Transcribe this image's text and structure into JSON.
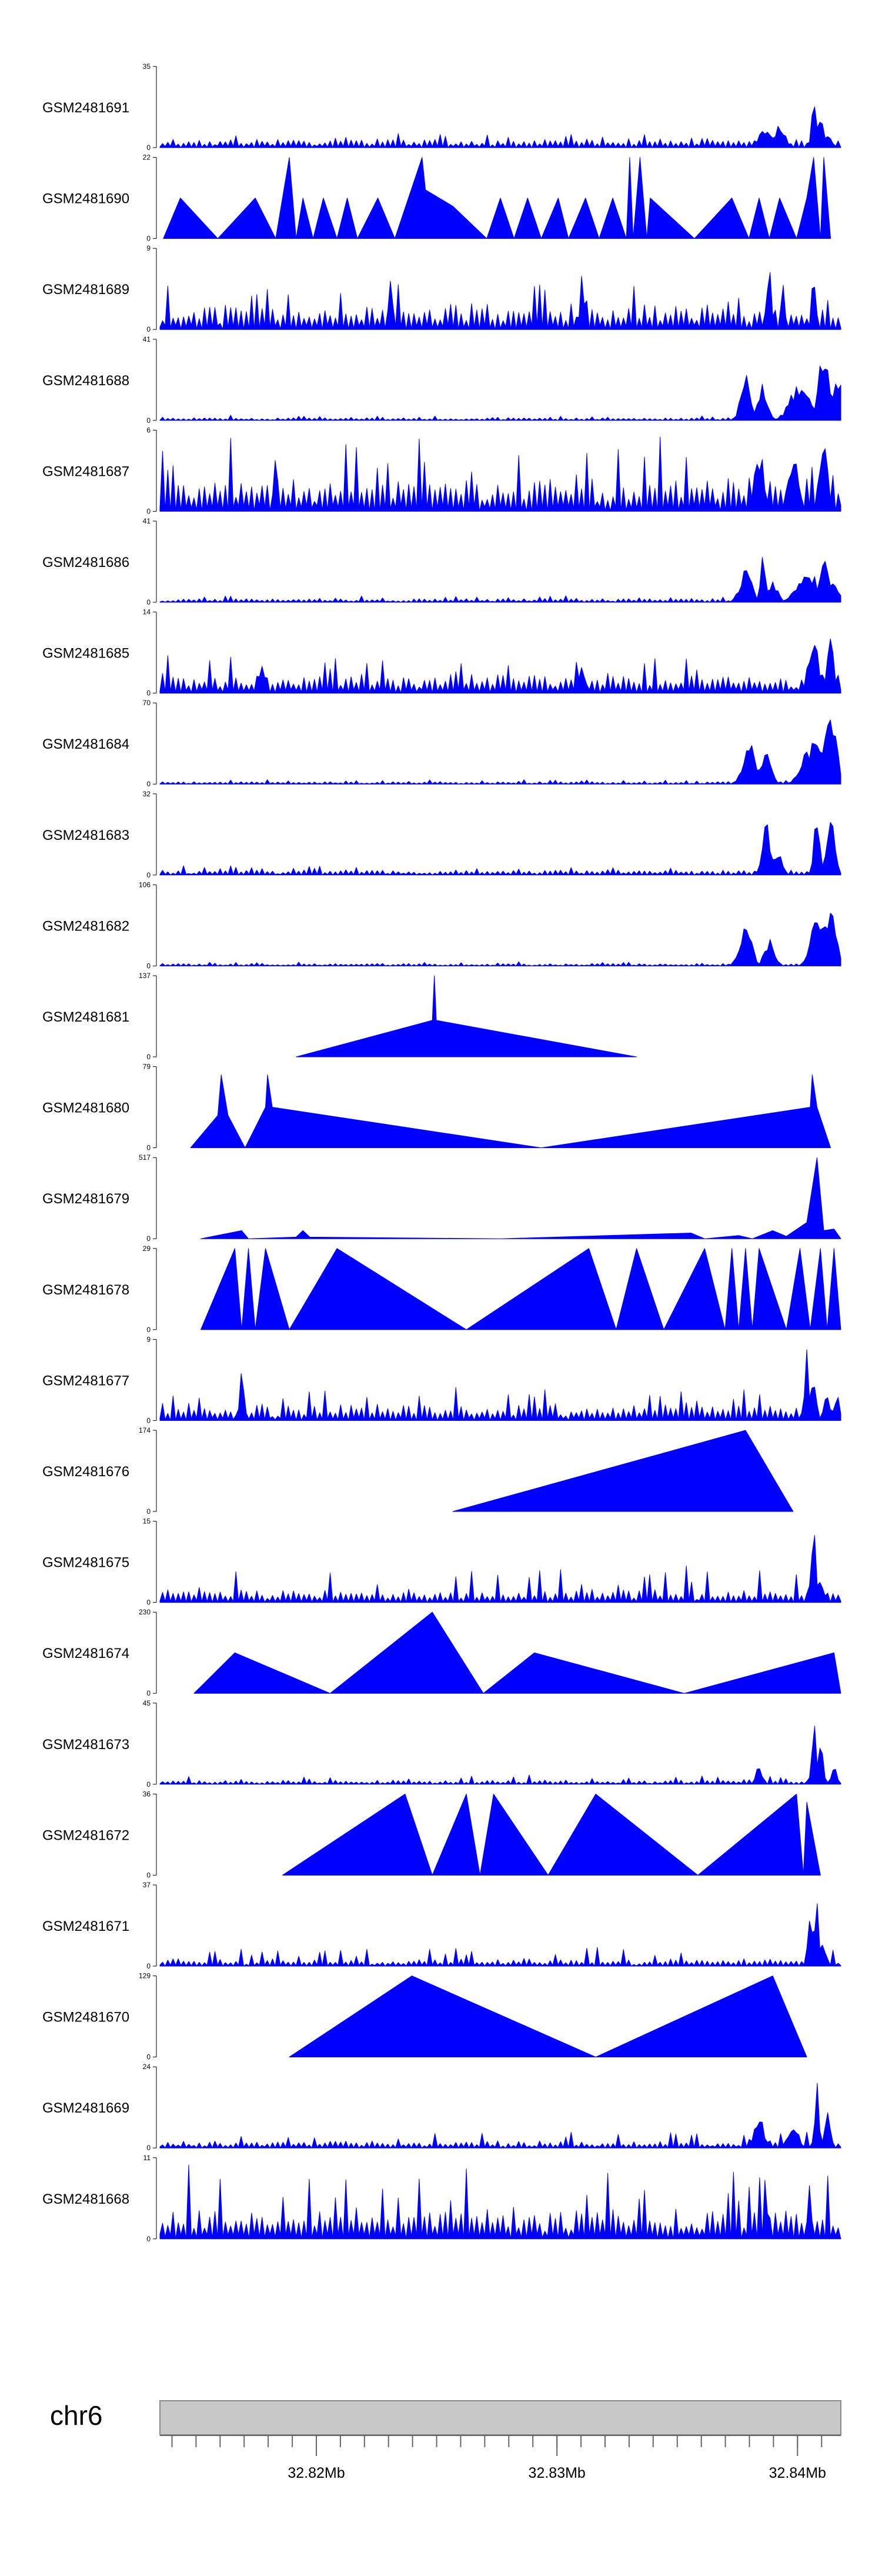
{
  "chart_data": {
    "type": "area",
    "title": "",
    "xlabel": "",
    "ylabel": "",
    "chromosome": "chr6",
    "xlim": [
      32.8135,
      32.8418
    ],
    "x_ticks": [
      {
        "value": 32.82,
        "label": "32.82Mb"
      },
      {
        "value": 32.83,
        "label": "32.83Mb"
      },
      {
        "value": 32.84,
        "label": "32.84Mb"
      }
    ],
    "tracks": [
      {
        "name": "GSM2481691",
        "ymax": 35,
        "ymin": 0,
        "kind": "dense",
        "seed": 11,
        "base": 0.07,
        "noise": 0.06,
        "peaks": [
          [
            0.888,
            0.25,
            0.012
          ],
          [
            0.91,
            0.35,
            0.01
          ],
          [
            0.96,
            1.0,
            0.004
          ],
          [
            0.97,
            0.45,
            0.006
          ],
          [
            0.98,
            0.15,
            0.01
          ]
        ]
      },
      {
        "name": "GSM2481690",
        "ymax": 22,
        "ymin": 0,
        "kind": "sparse",
        "seed": 12,
        "points": [
          [
            0.005,
            0.0
          ],
          [
            0.03,
            0.5
          ],
          [
            0.085,
            0.0
          ],
          [
            0.14,
            0.5
          ],
          [
            0.17,
            0.0
          ],
          [
            0.19,
            1.0
          ],
          [
            0.2,
            0.0
          ],
          [
            0.21,
            0.5
          ],
          [
            0.225,
            0.0
          ],
          [
            0.24,
            0.5
          ],
          [
            0.26,
            0.0
          ],
          [
            0.275,
            0.5
          ],
          [
            0.29,
            0.0
          ],
          [
            0.32,
            0.5
          ],
          [
            0.345,
            0.0
          ],
          [
            0.385,
            1.0
          ],
          [
            0.39,
            0.6
          ],
          [
            0.43,
            0.4
          ],
          [
            0.48,
            0.0
          ],
          [
            0.5,
            0.5
          ],
          [
            0.52,
            0.0
          ],
          [
            0.54,
            0.5
          ],
          [
            0.56,
            0.0
          ],
          [
            0.585,
            0.5
          ],
          [
            0.6,
            0.0
          ],
          [
            0.625,
            0.5
          ],
          [
            0.645,
            0.0
          ],
          [
            0.665,
            0.5
          ],
          [
            0.685,
            0.0
          ],
          [
            0.69,
            1.0
          ],
          [
            0.695,
            0.0
          ],
          [
            0.705,
            1.0
          ],
          [
            0.715,
            0.0
          ],
          [
            0.72,
            0.5
          ],
          [
            0.785,
            0.0
          ],
          [
            0.84,
            0.5
          ],
          [
            0.865,
            0.0
          ],
          [
            0.88,
            0.5
          ],
          [
            0.895,
            0.0
          ],
          [
            0.91,
            0.5
          ],
          [
            0.935,
            0.0
          ],
          [
            0.95,
            0.5
          ],
          [
            0.96,
            1.0
          ],
          [
            0.97,
            0.0
          ],
          [
            0.975,
            1.0
          ],
          [
            0.985,
            0.0
          ]
        ]
      },
      {
        "name": "GSM2481689",
        "ymax": 9,
        "ymin": 0,
        "kind": "dense",
        "seed": 13,
        "base": 0.18,
        "noise": 0.3,
        "peaks": [
          [
            0.34,
            0.7,
            0.004
          ],
          [
            0.62,
            0.8,
            0.004
          ],
          [
            0.895,
            0.85,
            0.004
          ],
          [
            0.915,
            1.0,
            0.003
          ],
          [
            0.96,
            0.9,
            0.004
          ]
        ]
      },
      {
        "name": "GSM2481688",
        "ymax": 41,
        "ymin": 0,
        "kind": "dense",
        "seed": 14,
        "base": 0.02,
        "noise": 0.03,
        "peaks": [
          [
            0.86,
            0.6,
            0.01
          ],
          [
            0.885,
            0.45,
            0.01
          ],
          [
            0.94,
            0.5,
            0.02
          ],
          [
            0.975,
            0.95,
            0.01
          ],
          [
            0.995,
            0.6,
            0.01
          ]
        ]
      },
      {
        "name": "GSM2481687",
        "ymax": 6,
        "ymin": 0,
        "kind": "dense",
        "seed": 15,
        "base": 0.25,
        "noise": 0.45,
        "peaks": [
          [
            0.17,
            0.8,
            0.004
          ],
          [
            0.88,
            0.9,
            0.01
          ],
          [
            0.93,
            0.8,
            0.01
          ],
          [
            0.975,
            0.95,
            0.008
          ]
        ]
      },
      {
        "name": "GSM2481686",
        "ymax": 41,
        "ymin": 0,
        "kind": "dense",
        "seed": 16,
        "base": 0.03,
        "noise": 0.03,
        "peaks": [
          [
            0.86,
            0.45,
            0.012
          ],
          [
            0.885,
            0.85,
            0.004
          ],
          [
            0.9,
            0.3,
            0.01
          ],
          [
            0.95,
            0.45,
            0.02
          ],
          [
            0.975,
            0.55,
            0.01
          ],
          [
            0.99,
            0.3,
            0.01
          ]
        ]
      },
      {
        "name": "GSM2481685",
        "ymax": 14,
        "ymin": 0,
        "kind": "dense",
        "seed": 17,
        "base": 0.15,
        "noise": 0.2,
        "peaks": [
          [
            0.15,
            0.45,
            0.006
          ],
          [
            0.62,
            0.45,
            0.006
          ],
          [
            0.96,
            0.7,
            0.01
          ],
          [
            0.985,
            1.0,
            0.006
          ]
        ]
      },
      {
        "name": "GSM2481684",
        "ymax": 70,
        "ymin": 0,
        "kind": "dense",
        "seed": 18,
        "base": 0.02,
        "noise": 0.02,
        "peaks": [
          [
            0.865,
            0.55,
            0.012
          ],
          [
            0.89,
            0.45,
            0.01
          ],
          [
            0.96,
            0.6,
            0.02
          ],
          [
            0.985,
            0.95,
            0.012
          ]
        ]
      },
      {
        "name": "GSM2481683",
        "ymax": 32,
        "ymin": 0,
        "kind": "dense",
        "seed": 19,
        "base": 0.04,
        "noise": 0.05,
        "peaks": [
          [
            0.89,
            0.7,
            0.008
          ],
          [
            0.905,
            0.35,
            0.01
          ],
          [
            0.965,
            0.9,
            0.006
          ],
          [
            0.985,
            1.0,
            0.008
          ]
        ]
      },
      {
        "name": "GSM2481682",
        "ymax": 106,
        "ymin": 0,
        "kind": "dense",
        "seed": 20,
        "base": 0.02,
        "noise": 0.02,
        "peaks": [
          [
            0.86,
            0.6,
            0.012
          ],
          [
            0.895,
            0.35,
            0.01
          ],
          [
            0.965,
            0.75,
            0.012
          ],
          [
            0.985,
            0.95,
            0.01
          ]
        ]
      },
      {
        "name": "GSM2481681",
        "ymax": 137,
        "ymin": 0,
        "kind": "sparse",
        "seed": 21,
        "points": [
          [
            0.2,
            0.0
          ],
          [
            0.4,
            0.45
          ],
          [
            0.403,
            1.0
          ],
          [
            0.406,
            0.45
          ],
          [
            0.7,
            0.0
          ]
        ]
      },
      {
        "name": "GSM2481680",
        "ymax": 79,
        "ymin": 0,
        "kind": "sparse",
        "seed": 22,
        "points": [
          [
            0.045,
            0.0
          ],
          [
            0.085,
            0.4
          ],
          [
            0.09,
            0.9
          ],
          [
            0.1,
            0.4
          ],
          [
            0.125,
            0.0
          ],
          [
            0.155,
            0.5
          ],
          [
            0.158,
            0.9
          ],
          [
            0.165,
            0.5
          ],
          [
            0.56,
            0.0
          ],
          [
            0.955,
            0.5
          ],
          [
            0.958,
            0.9
          ],
          [
            0.965,
            0.5
          ],
          [
            0.985,
            0.0
          ]
        ]
      },
      {
        "name": "GSM2481679",
        "ymax": 517,
        "ymin": 0,
        "kind": "sparse",
        "seed": 23,
        "points": [
          [
            0.06,
            0.0
          ],
          [
            0.12,
            0.1
          ],
          [
            0.13,
            0.0
          ],
          [
            0.2,
            0.02
          ],
          [
            0.21,
            0.1
          ],
          [
            0.22,
            0.02
          ],
          [
            0.5,
            0.0
          ],
          [
            0.78,
            0.07
          ],
          [
            0.8,
            0.0
          ],
          [
            0.85,
            0.04
          ],
          [
            0.87,
            0.0
          ],
          [
            0.9,
            0.1
          ],
          [
            0.92,
            0.03
          ],
          [
            0.95,
            0.2
          ],
          [
            0.965,
            1.0
          ],
          [
            0.975,
            0.1
          ],
          [
            0.99,
            0.12
          ],
          [
            1.0,
            0.0
          ]
        ]
      },
      {
        "name": "GSM2481678",
        "ymax": 29,
        "ymin": 0,
        "kind": "sparse",
        "seed": 24,
        "points": [
          [
            0.06,
            0.0
          ],
          [
            0.11,
            1.0
          ],
          [
            0.12,
            0.0
          ],
          [
            0.13,
            1.0
          ],
          [
            0.14,
            0.0
          ],
          [
            0.155,
            1.0
          ],
          [
            0.19,
            0.0
          ],
          [
            0.26,
            1.0
          ],
          [
            0.45,
            0.0
          ],
          [
            0.63,
            1.0
          ],
          [
            0.67,
            0.0
          ],
          [
            0.7,
            1.0
          ],
          [
            0.74,
            0.0
          ],
          [
            0.8,
            1.0
          ],
          [
            0.83,
            0.0
          ],
          [
            0.84,
            1.0
          ],
          [
            0.85,
            0.0
          ],
          [
            0.86,
            1.0
          ],
          [
            0.87,
            0.0
          ],
          [
            0.88,
            1.0
          ],
          [
            0.92,
            0.0
          ],
          [
            0.94,
            1.0
          ],
          [
            0.955,
            0.0
          ],
          [
            0.97,
            1.0
          ],
          [
            0.98,
            0.0
          ],
          [
            0.99,
            1.0
          ],
          [
            1.0,
            0.0
          ]
        ]
      },
      {
        "name": "GSM2481677",
        "ymax": 9,
        "ymin": 0,
        "kind": "dense",
        "seed": 25,
        "base": 0.12,
        "noise": 0.18,
        "peaks": [
          [
            0.12,
            0.7,
            0.004
          ],
          [
            0.95,
            0.9,
            0.004
          ],
          [
            0.96,
            0.6,
            0.006
          ],
          [
            0.98,
            0.4,
            0.006
          ],
          [
            0.995,
            0.5,
            0.004
          ]
        ]
      },
      {
        "name": "GSM2481676",
        "ymax": 174,
        "ymin": 0,
        "kind": "sparse",
        "seed": 26,
        "points": [
          [
            0.43,
            0.0
          ],
          [
            0.86,
            1.0
          ],
          [
            0.93,
            0.0
          ]
        ]
      },
      {
        "name": "GSM2481675",
        "ymax": 15,
        "ymin": 0,
        "kind": "dense",
        "seed": 27,
        "base": 0.08,
        "noise": 0.25,
        "peaks": [
          [
            0.96,
            0.95,
            0.005
          ],
          [
            0.97,
            0.4,
            0.006
          ]
        ]
      },
      {
        "name": "GSM2481674",
        "ymax": 230,
        "ymin": 0,
        "kind": "sparse",
        "seed": 28,
        "points": [
          [
            0.05,
            0.0
          ],
          [
            0.11,
            0.5
          ],
          [
            0.25,
            0.0
          ],
          [
            0.4,
            1.0
          ],
          [
            0.475,
            0.0
          ],
          [
            0.55,
            0.5
          ],
          [
            0.77,
            0.0
          ],
          [
            0.99,
            0.5
          ],
          [
            1.0,
            0.0
          ]
        ]
      },
      {
        "name": "GSM2481673",
        "ymax": 45,
        "ymin": 0,
        "kind": "dense",
        "seed": 29,
        "base": 0.03,
        "noise": 0.05,
        "peaks": [
          [
            0.88,
            0.25,
            0.006
          ],
          [
            0.96,
            1.0,
            0.004
          ],
          [
            0.97,
            0.5,
            0.006
          ],
          [
            0.99,
            0.25,
            0.006
          ]
        ]
      },
      {
        "name": "GSM2481672",
        "ymax": 36,
        "ymin": 0,
        "kind": "sparse",
        "seed": 30,
        "points": [
          [
            0.18,
            0.0
          ],
          [
            0.36,
            1.0
          ],
          [
            0.4,
            0.0
          ],
          [
            0.45,
            1.0
          ],
          [
            0.47,
            0.0
          ],
          [
            0.49,
            1.0
          ],
          [
            0.57,
            0.0
          ],
          [
            0.64,
            1.0
          ],
          [
            0.79,
            0.0
          ],
          [
            0.935,
            1.0
          ],
          [
            0.945,
            0.0
          ],
          [
            0.95,
            0.9
          ],
          [
            0.97,
            0.0
          ]
        ]
      },
      {
        "name": "GSM2481671",
        "ymax": 37,
        "ymin": 0,
        "kind": "dense",
        "seed": 31,
        "base": 0.05,
        "noise": 0.12,
        "peaks": [
          [
            0.955,
            0.6,
            0.005
          ],
          [
            0.965,
            1.0,
            0.004
          ],
          [
            0.975,
            0.3,
            0.006
          ]
        ]
      },
      {
        "name": "GSM2481670",
        "ymax": 129,
        "ymin": 0,
        "kind": "sparse",
        "seed": 32,
        "points": [
          [
            0.19,
            0.0
          ],
          [
            0.37,
            1.0
          ],
          [
            0.64,
            0.0
          ],
          [
            0.9,
            1.0
          ],
          [
            0.95,
            0.0
          ]
        ]
      },
      {
        "name": "GSM2481669",
        "ymax": 24,
        "ymin": 0,
        "kind": "dense",
        "seed": 33,
        "base": 0.05,
        "noise": 0.1,
        "peaks": [
          [
            0.88,
            0.4,
            0.01
          ],
          [
            0.93,
            0.35,
            0.01
          ],
          [
            0.965,
            0.95,
            0.004
          ],
          [
            0.98,
            0.5,
            0.006
          ]
        ]
      },
      {
        "name": "GSM2481668",
        "ymax": 11,
        "ymin": 0,
        "kind": "dense",
        "seed": 34,
        "base": 0.2,
        "noise": 0.45,
        "peaks": [
          [
            0.89,
            0.95,
            0.003
          ],
          [
            0.955,
            0.9,
            0.003
          ]
        ]
      }
    ]
  }
}
